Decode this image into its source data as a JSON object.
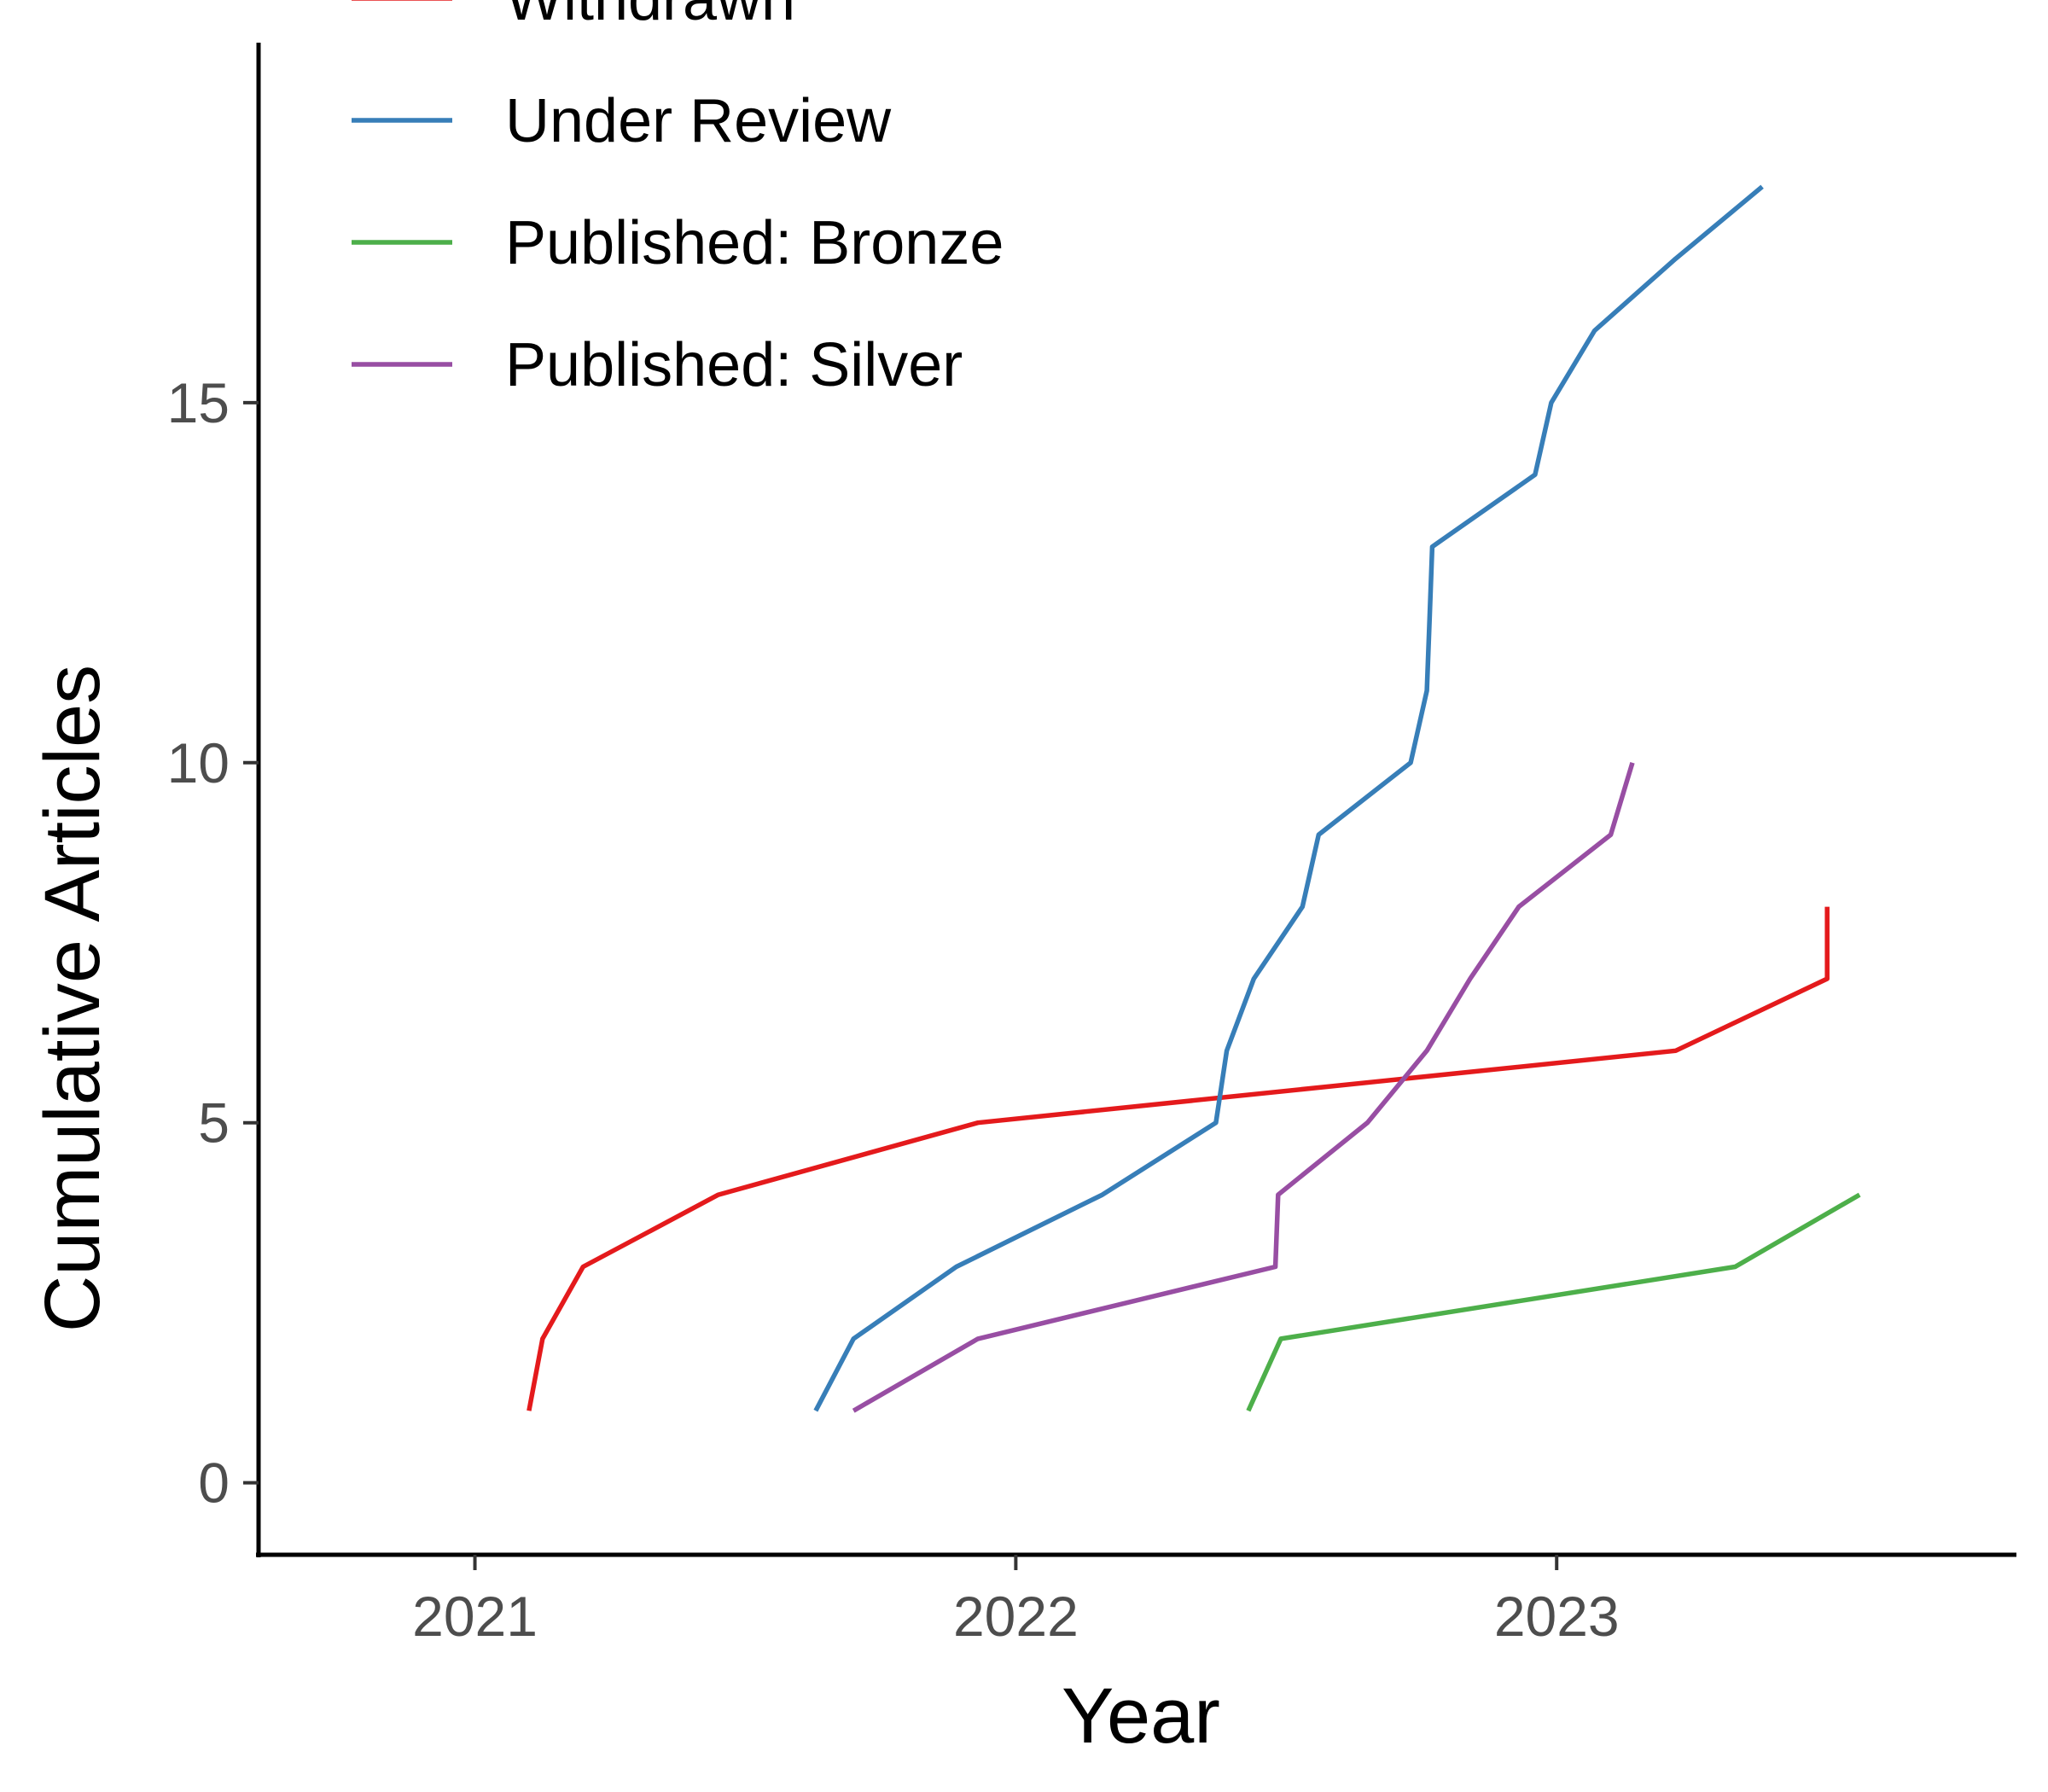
{
  "chart_data": {
    "type": "line",
    "xlabel": "Year",
    "ylabel": "Cumulative Articles",
    "xlim": [
      2020.6,
      2023.85
    ],
    "ylim": [
      -1,
      20
    ],
    "x_ticks": [
      {
        "value": 2021,
        "label": "2021"
      },
      {
        "value": 2022,
        "label": "2022"
      },
      {
        "value": 2023,
        "label": "2023"
      }
    ],
    "y_ticks": [
      {
        "value": 0,
        "label": "0"
      },
      {
        "value": 5,
        "label": "5"
      },
      {
        "value": 10,
        "label": "10"
      },
      {
        "value": 15,
        "label": "15"
      }
    ],
    "grid": false,
    "legend": "top-left",
    "series": [
      {
        "name": "Withdrawn",
        "color": "#E41A1C",
        "x": [
          2021.1,
          2021.125,
          2021.2,
          2021.45,
          2021.93,
          2023.22,
          2023.5,
          2023.5
        ],
        "y": [
          1,
          2,
          3,
          4,
          5,
          6,
          7,
          8
        ]
      },
      {
        "name": "Under Review",
        "color": "#377EB8",
        "x": [
          2021.63,
          2021.7,
          2021.89,
          2022.16,
          2022.37,
          2022.39,
          2022.44,
          2022.53,
          2022.56,
          2022.73,
          2022.76,
          2022.765,
          2022.77,
          2022.96,
          2022.99,
          2023.07,
          2023.22,
          2023.38
        ],
        "y": [
          1,
          2,
          3,
          4,
          5,
          6,
          7,
          8,
          9,
          10,
          11,
          12,
          13,
          14,
          15,
          16,
          17,
          18
        ]
      },
      {
        "name": "Published: Bronze",
        "color": "#4DAF4A",
        "x": [
          2022.43,
          2022.49,
          2023.33,
          2023.56
        ],
        "y": [
          1,
          2,
          3,
          4
        ]
      },
      {
        "name": "Published: Silver",
        "color": "#984EA3",
        "x": [
          2021.7,
          2021.93,
          2022.48,
          2022.485,
          2022.65,
          2022.76,
          2022.84,
          2022.93,
          2023.1,
          2023.14
        ],
        "y": [
          1,
          2,
          3,
          4,
          5,
          6,
          7,
          8,
          9,
          10
        ]
      }
    ]
  }
}
